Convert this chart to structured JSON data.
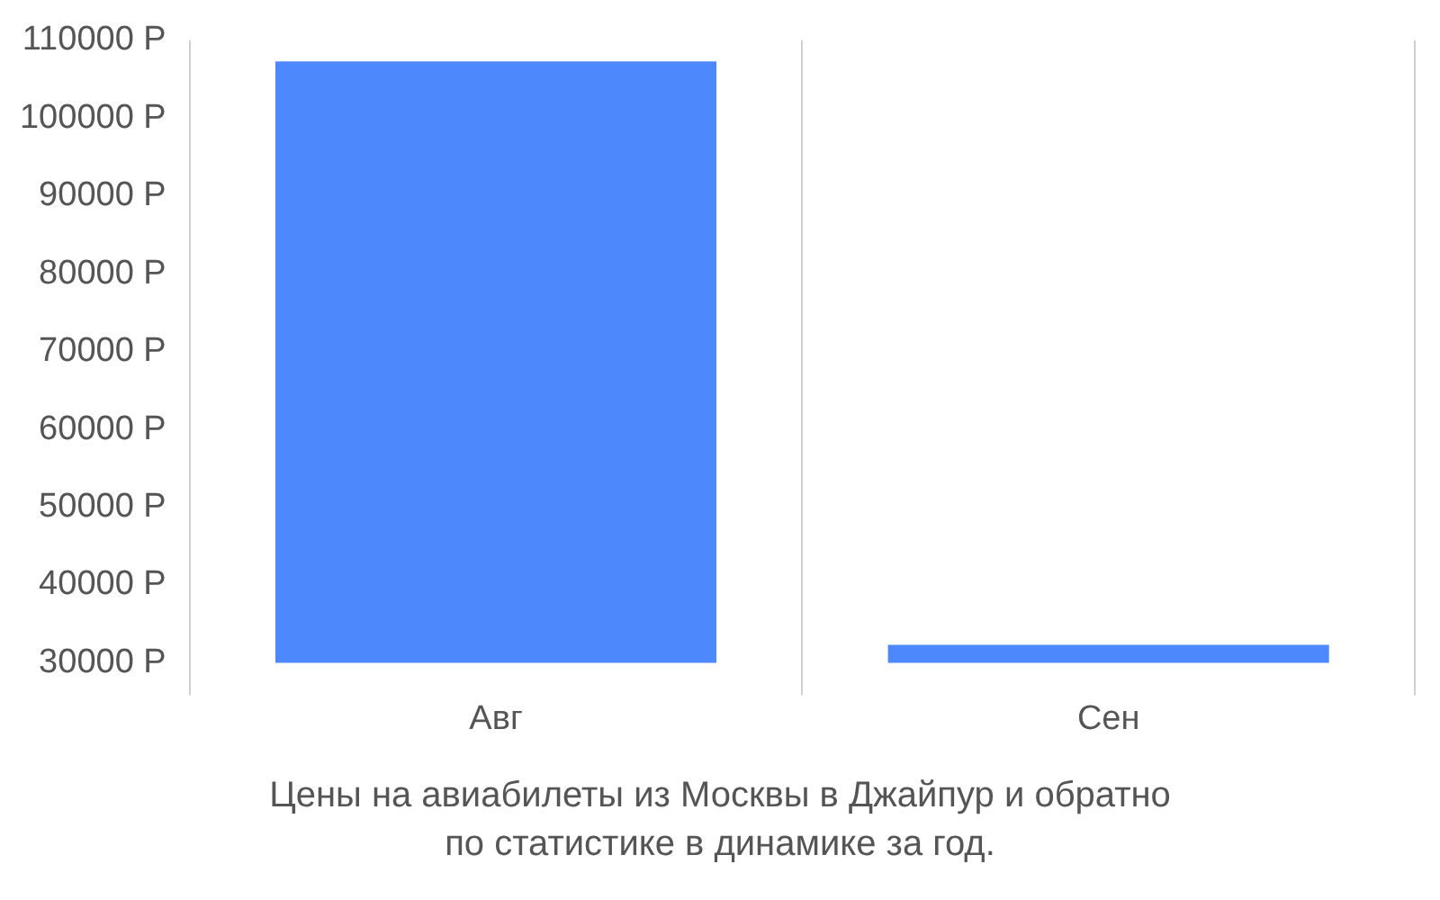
{
  "chart_data": {
    "type": "bar",
    "title": "Цены на авиабилеты из Москвы в Джайпур и обратно\nпо статистике в динамике за год.",
    "categories": [
      "Авг",
      "Сен"
    ],
    "values": [
      107300,
      32300
    ],
    "color": "#4d88fd",
    "ylim": [
      30000,
      110000
    ],
    "yticks": [
      {
        "value": 30000,
        "label": "30000 Р"
      },
      {
        "value": 40000,
        "label": "40000 Р"
      },
      {
        "value": 50000,
        "label": "50000 Р"
      },
      {
        "value": 60000,
        "label": "60000 Р"
      },
      {
        "value": 70000,
        "label": "70000 Р"
      },
      {
        "value": 80000,
        "label": "80000 Р"
      },
      {
        "value": 90000,
        "label": "90000 Р"
      },
      {
        "value": 100000,
        "label": "100000 Р"
      },
      {
        "value": 110000,
        "label": "110000 Р"
      }
    ],
    "grid": "x",
    "legend": false
  }
}
